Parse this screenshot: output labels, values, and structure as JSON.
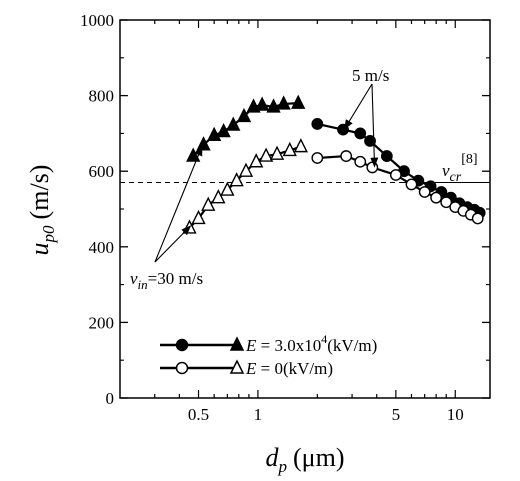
{
  "chart_data": {
    "type": "line",
    "x_scale": "log",
    "xlim": [
      0.2,
      15
    ],
    "ylim": [
      0,
      1000
    ],
    "xticks": [
      0.5,
      1,
      5,
      10
    ],
    "xtick_labels": [
      "0.5",
      "1",
      "5",
      "10"
    ],
    "yticks": [
      0,
      200,
      400,
      600,
      800,
      1000
    ],
    "ytick_labels": [
      "0",
      "200",
      "400",
      "600",
      "800",
      "1000"
    ],
    "xlabel_main": "d",
    "xlabel_sub": "p",
    "xlabel_unit": "(μm)",
    "ylabel_main": "u",
    "ylabel_sub": "p0",
    "ylabel_unit": "(m/s)",
    "grid": false,
    "legend_location": "bottom-center",
    "legend": [
      {
        "prefix": "E",
        "text": " = 3.0x10",
        "sup": "4",
        "tail": "(kV/m)",
        "filled": true
      },
      {
        "prefix": "E",
        "text": " = 0(kV/m)",
        "sup": "",
        "tail": "",
        "filled": false
      }
    ],
    "reference_line": {
      "name_main": "v",
      "name_sub": "cr",
      "name_sup": "[8]",
      "y": 570
    },
    "annotations": {
      "vin_main": "v",
      "vin_sub": "in",
      "vin_value": "=30 m/s",
      "five_label": "5 m/s"
    },
    "series": [
      {
        "marker": "triangle",
        "filled": true,
        "x": [
          0.47,
          0.53,
          0.6,
          0.67,
          0.75,
          0.85,
          0.95,
          1.05,
          1.2,
          1.35,
          1.6
        ],
        "y": [
          640,
          670,
          695,
          705,
          722,
          745,
          770,
          775,
          770,
          778,
          780
        ]
      },
      {
        "marker": "triangle",
        "filled": false,
        "x": [
          0.45,
          0.5,
          0.56,
          0.63,
          0.7,
          0.78,
          0.87,
          0.98,
          1.1,
          1.25,
          1.45,
          1.65
        ],
        "y": [
          450,
          475,
          510,
          530,
          550,
          575,
          600,
          625,
          640,
          645,
          655,
          665
        ]
      },
      {
        "marker": "circle",
        "filled": true,
        "x": [
          2.0,
          2.7,
          3.3,
          3.7,
          4.5,
          5.5,
          6.5,
          7.5,
          8.5,
          9.5,
          10.5,
          11.5,
          12.5,
          13.3
        ],
        "y": [
          725,
          710,
          700,
          680,
          640,
          600,
          575,
          560,
          545,
          530,
          515,
          505,
          498,
          490
        ]
      },
      {
        "marker": "circle",
        "filled": false,
        "x": [
          2.0,
          2.8,
          3.3,
          3.8,
          5.0,
          6.0,
          7.0,
          8.0,
          9.0,
          10.0,
          11.0,
          12.0,
          13.0
        ],
        "y": [
          635,
          640,
          625,
          610,
          590,
          565,
          545,
          530,
          518,
          505,
          495,
          485,
          475
        ]
      }
    ]
  }
}
